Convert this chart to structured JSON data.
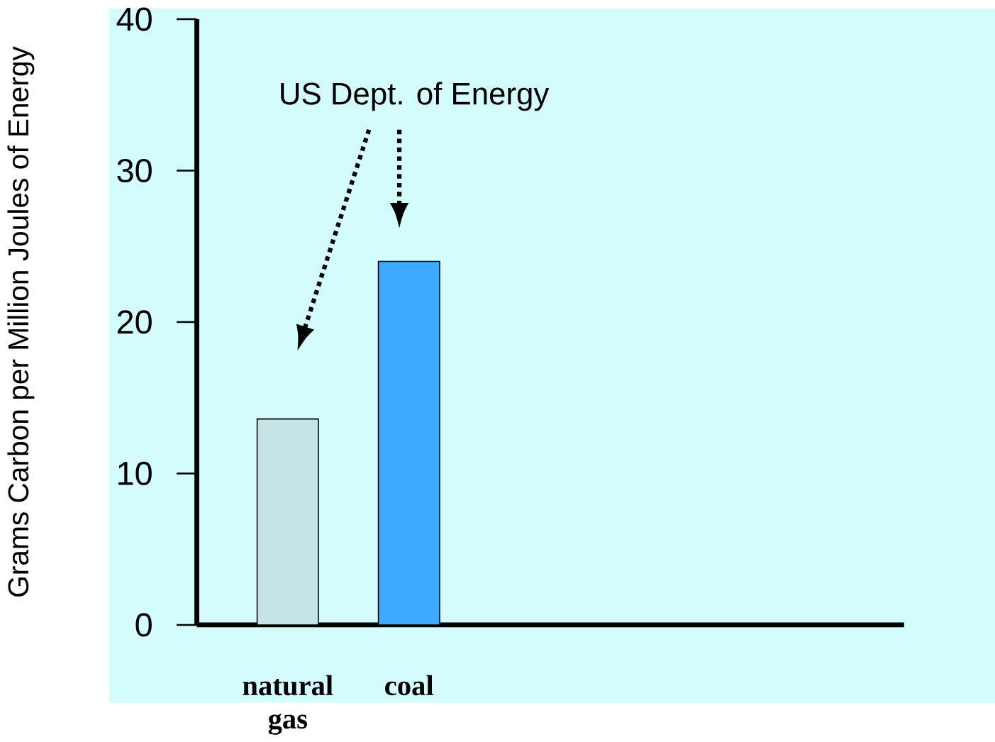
{
  "chart_data": {
    "type": "bar",
    "ylabel": "Grams Carbon per Million Joules of Energy",
    "categories": [
      "natural gas",
      "coal"
    ],
    "values": [
      13.6,
      24.0
    ],
    "colors": [
      "#c5e4e6",
      "#3fa9fe"
    ],
    "ylim": [
      0,
      40
    ],
    "yticks": [
      0,
      10,
      20,
      30,
      40
    ],
    "annotations": [
      "US Dept. of Energy"
    ]
  }
}
